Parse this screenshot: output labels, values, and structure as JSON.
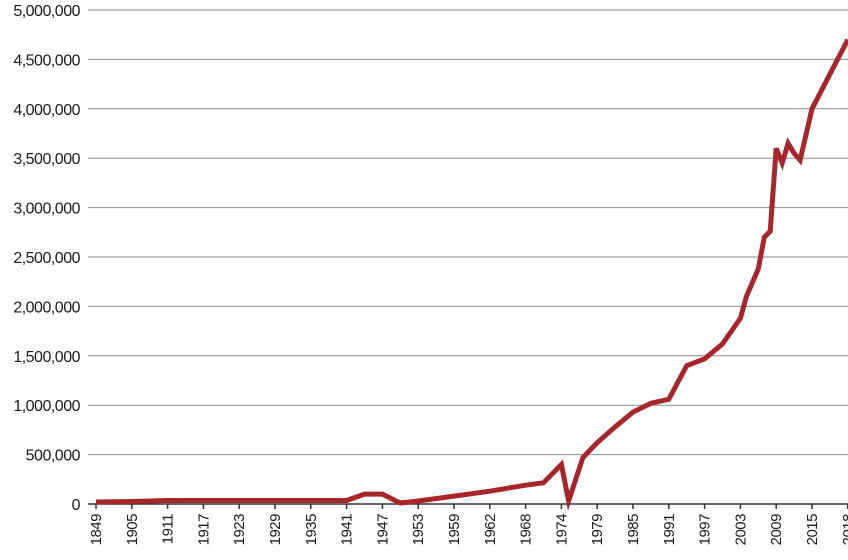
{
  "chart_data": {
    "type": "line",
    "title": "",
    "xlabel": "",
    "ylabel": "",
    "ylim": [
      0,
      5000000
    ],
    "grid": true,
    "legend": "none",
    "line_color": "#a8262b",
    "y_ticks": [
      0,
      500000,
      1000000,
      1500000,
      2000000,
      2500000,
      3000000,
      3500000,
      4000000,
      4500000,
      5000000
    ],
    "y_tick_labels": [
      "0",
      "500,000",
      "1,000,000",
      "1,500,000",
      "2,000,000",
      "2,500,000",
      "3,000,000",
      "3,500,000",
      "4,000,000",
      "4,500,000",
      "5,000,000"
    ],
    "x_tick_labels": [
      "1849",
      "1905",
      "1911",
      "1917",
      "1923",
      "1929",
      "1935",
      "1941",
      "1947",
      "1953",
      "1959",
      "1962",
      "1968",
      "1974",
      "1979",
      "1985",
      "1991",
      "1997",
      "2003",
      "2009",
      "2015",
      "2018"
    ],
    "series": [
      {
        "x": [
          "1849",
          "1905",
          "1911",
          "1917",
          "1923",
          "1929",
          "1935",
          "1941",
          "1944",
          "1947",
          "1950",
          "1953",
          "1959",
          "1962",
          "1968",
          "1971",
          "1974",
          "1975",
          "1977",
          "1979",
          "1982",
          "1985",
          "1988",
          "1991",
          "1994",
          "1997",
          "2000",
          "2003",
          "2004",
          "2006",
          "2007",
          "2008",
          "2009",
          "2010",
          "2011",
          "2012",
          "2013",
          "2015",
          "2018"
        ],
        "values": [
          20000,
          25000,
          35000,
          35000,
          35000,
          35000,
          35000,
          35000,
          100000,
          100000,
          10000,
          30000,
          80000,
          130000,
          190000,
          215000,
          400000,
          30000,
          470000,
          620000,
          780000,
          930000,
          1020000,
          1060000,
          1400000,
          1470000,
          1620000,
          1880000,
          2100000,
          2380000,
          2700000,
          2760000,
          3600000,
          3450000,
          3650000,
          3550000,
          3480000,
          4000000,
          4700000
        ]
      }
    ]
  }
}
